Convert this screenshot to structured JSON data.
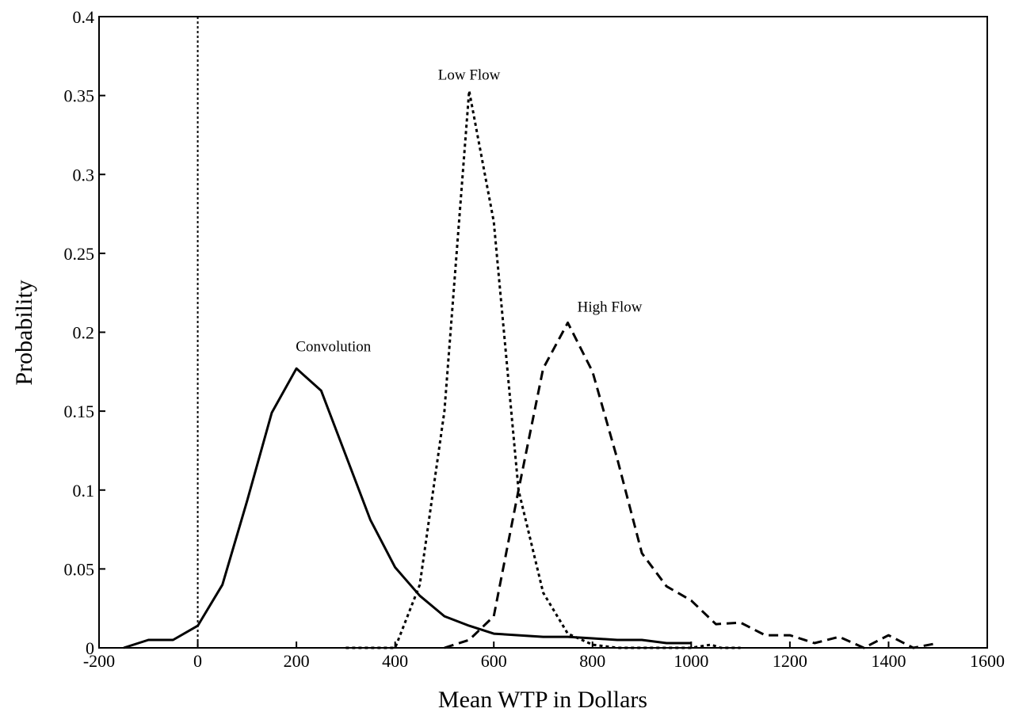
{
  "chart_data": {
    "type": "line",
    "title": "",
    "xlabel": "Mean WTP in Dollars",
    "ylabel": "Probability",
    "xlim": [
      -200,
      1600
    ],
    "ylim": [
      0,
      0.4
    ],
    "x_ticks": [
      "-200",
      "0",
      "200",
      "400",
      "600",
      "800",
      "1000",
      "1200",
      "1400",
      "1600"
    ],
    "y_ticks": [
      "0",
      "0.05",
      "0.1",
      "0.15",
      "0.2",
      "0.25",
      "0.3",
      "0.35",
      "0.4"
    ],
    "grid": false,
    "legend": "none",
    "reference_line": {
      "x": 0,
      "style": "dotted"
    },
    "series": [
      {
        "name": "Convolution",
        "style": "solid",
        "points": [
          [
            -150,
            0
          ],
          [
            -100,
            0.005
          ],
          [
            -50,
            0.005
          ],
          [
            0,
            0.014
          ],
          [
            50,
            0.04
          ],
          [
            100,
            0.093
          ],
          [
            150,
            0.149
          ],
          [
            200,
            0.177
          ],
          [
            250,
            0.163
          ],
          [
            300,
            0.122
          ],
          [
            350,
            0.081
          ],
          [
            400,
            0.051
          ],
          [
            450,
            0.033
          ],
          [
            500,
            0.02
          ],
          [
            550,
            0.014
          ],
          [
            600,
            0.009
          ],
          [
            650,
            0.008
          ],
          [
            700,
            0.007
          ],
          [
            750,
            0.007
          ],
          [
            800,
            0.006
          ],
          [
            850,
            0.005
          ],
          [
            900,
            0.005
          ],
          [
            950,
            0.003
          ],
          [
            1000,
            0.003
          ]
        ]
      },
      {
        "name": "Low Flow",
        "style": "dotted",
        "points": [
          [
            300,
            0
          ],
          [
            350,
            0
          ],
          [
            400,
            0
          ],
          [
            450,
            0.04
          ],
          [
            500,
            0.15
          ],
          [
            550,
            0.353
          ],
          [
            600,
            0.27
          ],
          [
            650,
            0.1
          ],
          [
            700,
            0.035
          ],
          [
            750,
            0.009
          ],
          [
            800,
            0.002
          ],
          [
            850,
            0
          ],
          [
            900,
            0
          ],
          [
            950,
            0
          ],
          [
            1000,
            0
          ],
          [
            1040,
            0.002
          ],
          [
            1060,
            0
          ],
          [
            1100,
            0
          ]
        ]
      },
      {
        "name": "High Flow",
        "style": "dashed",
        "points": [
          [
            500,
            0
          ],
          [
            550,
            0.005
          ],
          [
            600,
            0.02
          ],
          [
            650,
            0.1
          ],
          [
            700,
            0.177
          ],
          [
            750,
            0.206
          ],
          [
            800,
            0.175
          ],
          [
            850,
            0.12
          ],
          [
            900,
            0.06
          ],
          [
            950,
            0.039
          ],
          [
            1000,
            0.03
          ],
          [
            1050,
            0.015
          ],
          [
            1100,
            0.016
          ],
          [
            1150,
            0.008
          ],
          [
            1200,
            0.008
          ],
          [
            1250,
            0.003
          ],
          [
            1300,
            0.007
          ],
          [
            1350,
            0
          ],
          [
            1400,
            0.008
          ],
          [
            1450,
            0
          ],
          [
            1500,
            0.003
          ]
        ]
      }
    ],
    "annotations": [
      {
        "text": "Low Flow",
        "x": 550,
        "y": 0.36
      },
      {
        "text": "High Flow",
        "x": 835,
        "y": 0.213
      },
      {
        "text": "Convolution",
        "x": 275,
        "y": 0.188
      }
    ]
  }
}
